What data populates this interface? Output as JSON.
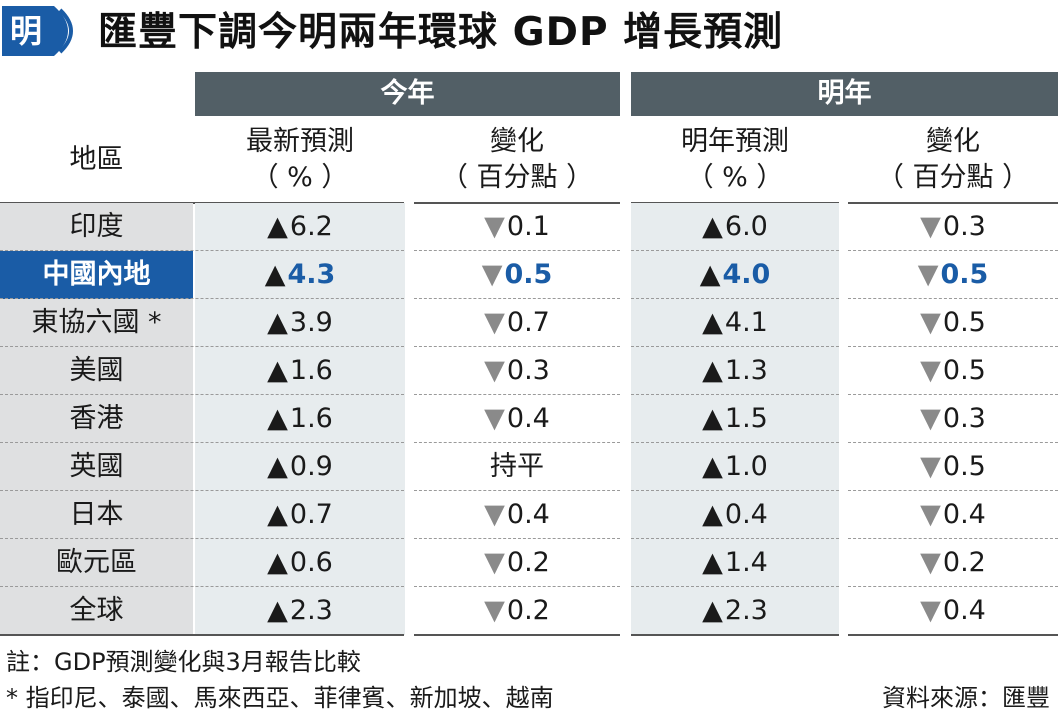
{
  "title": {
    "badge": "明",
    "text": "匯豐下調今明兩年環球 GDP 增長預測"
  },
  "header": {
    "group_this_year": "今年",
    "group_next_year": "明年",
    "col_region": "地區",
    "col_latest_line1": "最新預測",
    "col_latest_line2": "（ % ）",
    "col_change_line1": "變化",
    "col_change_line2": "（ 百分點 ）",
    "col_next_line1": "明年預測",
    "col_next_line2": "（ % ）",
    "col_change2_line1": "變化",
    "col_change2_line2": "（ 百分點 ）"
  },
  "colors": {
    "header_bg": "#525f66",
    "highlight": "#1a5ca6",
    "region_bg": "#dfe0e1",
    "shade_bg": "#e7ecee",
    "down_arrow": "#8a8a8a"
  },
  "chart_data": {
    "type": "table",
    "title": "匯豐下調今明兩年環球 GDP 增長預測",
    "columns": [
      "地區",
      "最新預測（%）",
      "變化（百分點）",
      "明年預測（%）",
      "變化（百分點）"
    ],
    "highlighted_row": "中國內地",
    "rows": [
      {
        "region": "印度",
        "this_year": {
          "dir": "▲",
          "value": "6.2"
        },
        "this_change": {
          "dir": "▼",
          "value": "0.1"
        },
        "next_year": {
          "dir": "▲",
          "value": "6.0"
        },
        "next_change": {
          "dir": "▼",
          "value": "0.3"
        }
      },
      {
        "region": "中國內地",
        "this_year": {
          "dir": "▲",
          "value": "4.3"
        },
        "this_change": {
          "dir": "▼",
          "value": "0.5"
        },
        "next_year": {
          "dir": "▲",
          "value": "4.0"
        },
        "next_change": {
          "dir": "▼",
          "value": "0.5"
        }
      },
      {
        "region": "東協六國 *",
        "this_year": {
          "dir": "▲",
          "value": "3.9"
        },
        "this_change": {
          "dir": "▼",
          "value": "0.7"
        },
        "next_year": {
          "dir": "▲",
          "value": "4.1"
        },
        "next_change": {
          "dir": "▼",
          "value": "0.5"
        }
      },
      {
        "region": "美國",
        "this_year": {
          "dir": "▲",
          "value": "1.6"
        },
        "this_change": {
          "dir": "▼",
          "value": "0.3"
        },
        "next_year": {
          "dir": "▲",
          "value": "1.3"
        },
        "next_change": {
          "dir": "▼",
          "value": "0.5"
        }
      },
      {
        "region": "香港",
        "this_year": {
          "dir": "▲",
          "value": "1.6"
        },
        "this_change": {
          "dir": "▼",
          "value": "0.4"
        },
        "next_year": {
          "dir": "▲",
          "value": "1.5"
        },
        "next_change": {
          "dir": "▼",
          "value": "0.3"
        }
      },
      {
        "region": "英國",
        "this_year": {
          "dir": "▲",
          "value": "0.9"
        },
        "this_change": {
          "dir": "",
          "value": "持平"
        },
        "next_year": {
          "dir": "▲",
          "value": "1.0"
        },
        "next_change": {
          "dir": "▼",
          "value": "0.5"
        }
      },
      {
        "region": "日本",
        "this_year": {
          "dir": "▲",
          "value": "0.7"
        },
        "this_change": {
          "dir": "▼",
          "value": "0.4"
        },
        "next_year": {
          "dir": "▲",
          "value": "0.4"
        },
        "next_change": {
          "dir": "▼",
          "value": "0.4"
        }
      },
      {
        "region": "歐元區",
        "this_year": {
          "dir": "▲",
          "value": "0.6"
        },
        "this_change": {
          "dir": "▼",
          "value": "0.2"
        },
        "next_year": {
          "dir": "▲",
          "value": "1.4"
        },
        "next_change": {
          "dir": "▼",
          "value": "0.2"
        }
      },
      {
        "region": "全球",
        "this_year": {
          "dir": "▲",
          "value": "2.3"
        },
        "this_change": {
          "dir": "▼",
          "value": "0.2"
        },
        "next_year": {
          "dir": "▲",
          "value": "2.3"
        },
        "next_change": {
          "dir": "▼",
          "value": "0.4"
        }
      }
    ]
  },
  "footer": {
    "note1": "註：GDP預測變化與3月報告比較",
    "note2": "* 指印尼、泰國、馬來西亞、菲律賓、新加坡、越南",
    "source": "資料來源：匯豐"
  }
}
